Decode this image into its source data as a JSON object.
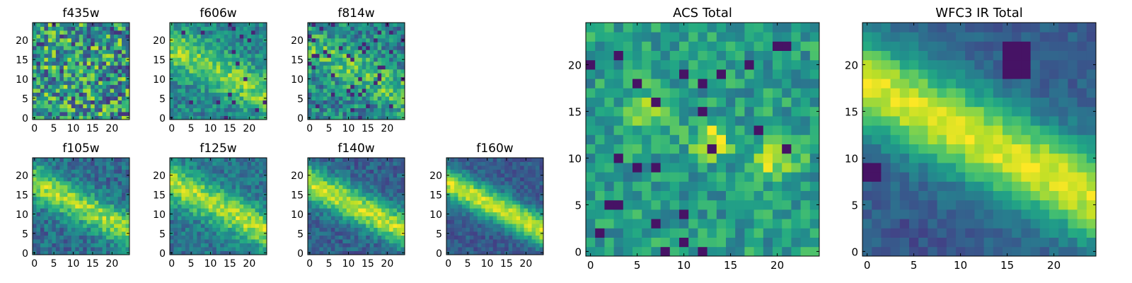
{
  "chart_data": [
    {
      "type": "heatmap",
      "title": "f435w",
      "grid_size": 25,
      "colormap": "viridis",
      "x_ticks": [
        "0",
        "5",
        "10",
        "15",
        "20"
      ],
      "y_ticks": [
        "0",
        "5",
        "10",
        "15",
        "20"
      ],
      "xlim": [
        0,
        24
      ],
      "ylim": [
        0,
        24
      ],
      "structure": "noise"
    },
    {
      "type": "heatmap",
      "title": "f606w",
      "grid_size": 25,
      "colormap": "viridis",
      "x_ticks": [
        "0",
        "5",
        "10",
        "15",
        "20"
      ],
      "y_ticks": [
        "0",
        "5",
        "10",
        "15",
        "20"
      ],
      "xlim": [
        0,
        24
      ],
      "ylim": [
        0,
        24
      ],
      "structure": "faint diagonal band"
    },
    {
      "type": "heatmap",
      "title": "f814w",
      "grid_size": 25,
      "colormap": "viridis",
      "x_ticks": [
        "0",
        "5",
        "10",
        "15",
        "20"
      ],
      "y_ticks": [
        "0",
        "5",
        "10",
        "15",
        "20"
      ],
      "xlim": [
        0,
        24
      ],
      "ylim": [
        0,
        24
      ],
      "structure": "faint diagonal band"
    },
    {
      "type": "heatmap",
      "title": "f105w",
      "grid_size": 25,
      "colormap": "viridis",
      "x_ticks": [
        "0",
        "5",
        "10",
        "15",
        "20"
      ],
      "y_ticks": [
        "0",
        "5",
        "10",
        "15",
        "20"
      ],
      "xlim": [
        0,
        24
      ],
      "ylim": [
        0,
        24
      ],
      "structure": "diagonal band"
    },
    {
      "type": "heatmap",
      "title": "f125w",
      "grid_size": 25,
      "colormap": "viridis",
      "x_ticks": [
        "0",
        "5",
        "10",
        "15",
        "20"
      ],
      "y_ticks": [
        "0",
        "5",
        "10",
        "15",
        "20"
      ],
      "xlim": [
        0,
        24
      ],
      "ylim": [
        0,
        24
      ],
      "structure": "diagonal band"
    },
    {
      "type": "heatmap",
      "title": "f140w",
      "grid_size": 25,
      "colormap": "viridis",
      "x_ticks": [
        "0",
        "5",
        "10",
        "15",
        "20"
      ],
      "y_ticks": [
        "0",
        "5",
        "10",
        "15",
        "20"
      ],
      "xlim": [
        0,
        24
      ],
      "ylim": [
        0,
        24
      ],
      "structure": "diagonal band"
    },
    {
      "type": "heatmap",
      "title": "f160w",
      "grid_size": 25,
      "colormap": "viridis",
      "x_ticks": [
        "0",
        "5",
        "10",
        "15",
        "20"
      ],
      "y_ticks": [
        "0",
        "5",
        "10",
        "15",
        "20"
      ],
      "xlim": [
        0,
        24
      ],
      "ylim": [
        0,
        24
      ],
      "structure": "strong diagonal band"
    },
    {
      "type": "heatmap",
      "title": "ACS Total",
      "grid_size": 25,
      "colormap": "viridis",
      "x_ticks": [
        "0",
        "5",
        "10",
        "15",
        "20"
      ],
      "y_ticks": [
        "0",
        "5",
        "10",
        "15",
        "20"
      ],
      "xlim": [
        0,
        24
      ],
      "ylim": [
        0,
        24
      ],
      "structure": "noise with bright blobs"
    },
    {
      "type": "heatmap",
      "title": "WFC3 IR Total",
      "grid_size": 25,
      "colormap": "viridis",
      "x_ticks": [
        "0",
        "5",
        "10",
        "15",
        "20"
      ],
      "y_ticks": [
        "0",
        "5",
        "10",
        "15",
        "20"
      ],
      "xlim": [
        0,
        24
      ],
      "ylim": [
        0,
        24
      ],
      "structure": "smooth diagonal band"
    }
  ]
}
